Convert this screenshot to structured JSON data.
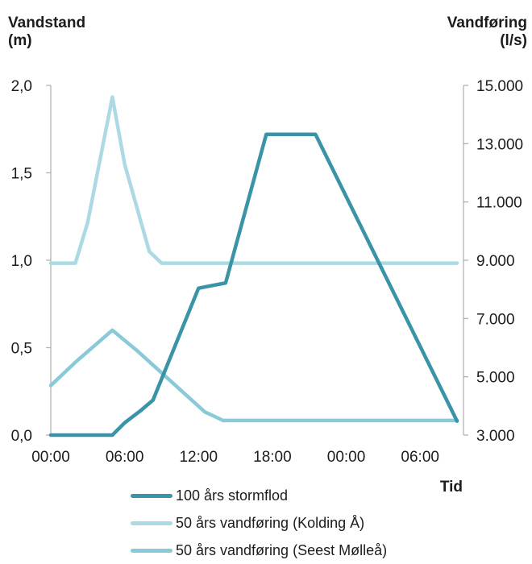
{
  "chart_data": {
    "type": "line",
    "title": "",
    "y_left_label": [
      "Vandstand",
      "(m)"
    ],
    "y_right_label": [
      "Vandføring",
      "(l/s)"
    ],
    "xlabel": "Tid",
    "x_ticks": [
      "00:00",
      "06:00",
      "12:00",
      "18:00",
      "00:00",
      "06:00"
    ],
    "y_left_ticks": [
      "0,0",
      "0,5",
      "1,0",
      "1,5",
      "2,0"
    ],
    "y_right_ticks": [
      "3.000",
      "5.000",
      "7.000",
      "9.000",
      "11.000",
      "13.000",
      "15.000"
    ],
    "y_left_lim": [
      0,
      2.0
    ],
    "y_right_lim": [
      3000,
      15000
    ],
    "x_unit": "hours from first 00:00",
    "x_lim": [
      0,
      33
    ],
    "grid": false,
    "legend_position": "bottom",
    "series": [
      {
        "name": "100 års stormflod",
        "axis": "left",
        "color": "#3a93a6",
        "x": [
          0,
          5,
          6,
          7.3,
          8.3,
          12,
          14.2,
          17.5,
          21.5,
          33
        ],
        "y": [
          0.0,
          0.0,
          0.07,
          0.14,
          0.2,
          0.84,
          0.87,
          1.72,
          1.72,
          0.08
        ]
      },
      {
        "name": "50 års vandføring (Kolding Å)",
        "axis": "right",
        "color": "#add9e5",
        "x": [
          0,
          2,
          3,
          5,
          6,
          8,
          9,
          33
        ],
        "y": [
          8900,
          8900,
          10300,
          14600,
          12300,
          9300,
          8900,
          8900
        ]
      },
      {
        "name": "50 års vandføring (Seest Mølleå)",
        "axis": "right",
        "color": "#8ac9d8",
        "x": [
          0,
          2,
          5,
          7,
          12.5,
          14,
          33
        ],
        "y": [
          4700,
          5500,
          6600,
          5900,
          3800,
          3500,
          3500
        ]
      }
    ]
  }
}
